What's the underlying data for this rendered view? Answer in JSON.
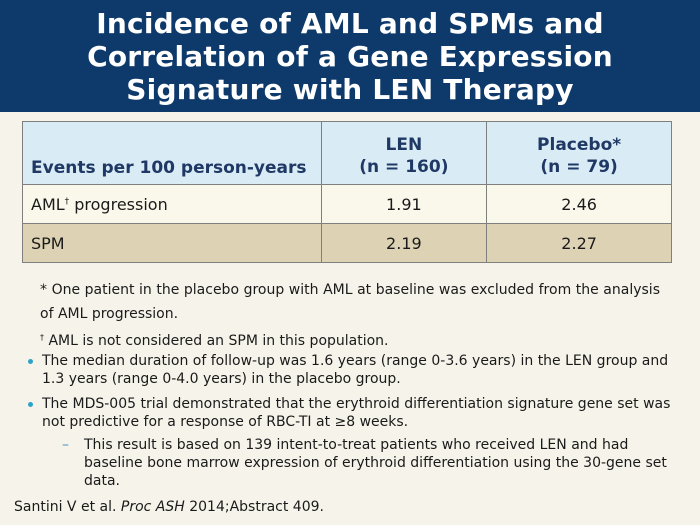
{
  "title": {
    "lines": [
      "Incidence of AML and SPMs and",
      "Correlation of a Gene Expression",
      "Signature with LEN Therapy"
    ]
  },
  "table": {
    "header": {
      "col0": "Events per 100 person-years",
      "col1_line1": "LEN",
      "col1_line2": "(n = 160)",
      "col2_line1": "Placebo*",
      "col2_line2": "(n = 79)"
    },
    "rows": [
      {
        "label": "AML",
        "sup": "†",
        "label_rest": " progression",
        "len": "1.91",
        "placebo": "2.46"
      },
      {
        "label": "SPM",
        "sup": "",
        "label_rest": "",
        "len": "2.19",
        "placebo": "2.27"
      }
    ],
    "colors": {
      "header_bg": "#d9ecf6",
      "row_light": "#faf7eb",
      "row_dark": "#ddd3b4"
    }
  },
  "footnotes": {
    "fn1": "* One patient in the placebo group with AML at baseline was excluded from the analysis of AML progression.",
    "fn2_mark": "†",
    "fn2": " AML is not considered an SPM in this population."
  },
  "bullets": [
    "The median duration of follow-up was 1.6 years (range 0-3.6 years) in the LEN group and 1.3 years (range 0-4.0 years) in the placebo group.",
    "The MDS-005 trial demonstrated that the erythroid differentiation signature gene set was not predictive for a response of RBC-TI at ≥8 weeks."
  ],
  "sub_bullet": {
    "dash": "–",
    "text": "This result is based on 139 intent-to-treat patients who received LEN and had baseline bone marrow expression of erythroid differentiation using the 30-gene set data."
  },
  "citation": {
    "authors": "Santini V et al. ",
    "journal": "Proc ASH",
    "rest": " 2014;Abstract 409."
  },
  "colors": {
    "header_bg": "#0e3a6b",
    "panel_bg": "#f6f4ea",
    "bullet_dot": "#2ea3c7"
  }
}
